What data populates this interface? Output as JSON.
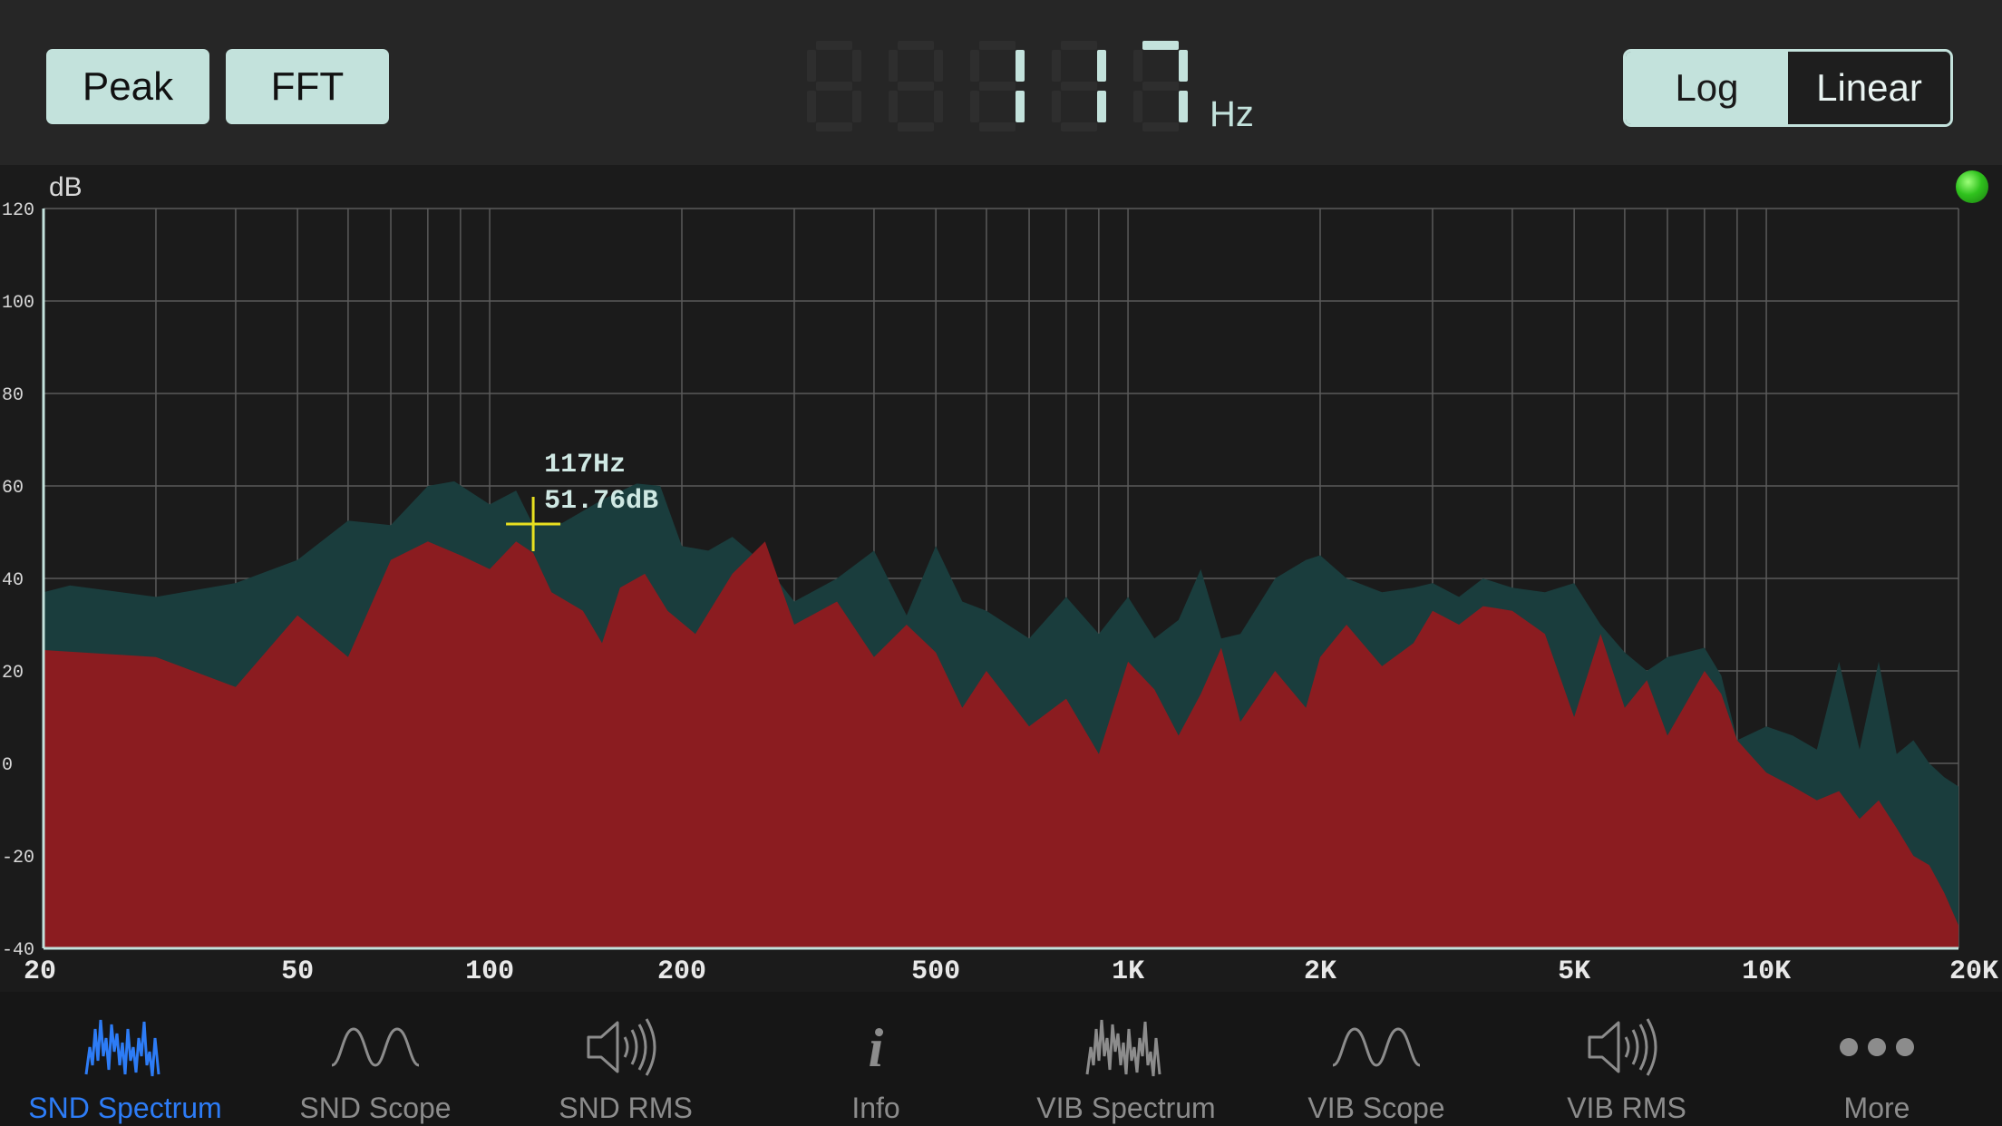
{
  "header": {
    "peak_label": "Peak",
    "fft_label": "FFT",
    "frequency_readout": "117",
    "frequency_unit": "Hz",
    "scale_log_label": "Log",
    "scale_linear_label": "Linear",
    "selected_scale": "Log"
  },
  "chart": {
    "y_unit_label": "dB",
    "cursor_freq_label": "117Hz",
    "cursor_level_label": "51.76dB",
    "status_led_color": "#2fc21d"
  },
  "chart_data": {
    "type": "area",
    "xscale": "log",
    "xlim": [
      20,
      20000
    ],
    "ylim": [
      -40,
      120
    ],
    "grid": true,
    "x_tick_labels": [
      "20",
      "50",
      "100",
      "200",
      "500",
      "1K",
      "2K",
      "5K",
      "10K",
      "20K"
    ],
    "x_tick_values": [
      20,
      50,
      100,
      200,
      500,
      1000,
      2000,
      5000,
      10000,
      20000
    ],
    "y_tick_labels": [
      "120",
      "100",
      "80",
      "60",
      "40",
      "20",
      "0",
      "-20",
      "-40"
    ],
    "y_tick_values": [
      120,
      100,
      80,
      60,
      40,
      20,
      0,
      -20,
      -40
    ],
    "ylabel": "dB",
    "cursor": {
      "freq_hz": 117,
      "level_db": 51.76
    },
    "series": [
      {
        "color": "#1a3d3d",
        "points": [
          [
            20,
            37
          ],
          [
            22,
            38.5
          ],
          [
            30,
            36
          ],
          [
            40,
            39
          ],
          [
            50,
            44
          ],
          [
            60,
            52.5
          ],
          [
            70,
            51.5
          ],
          [
            80,
            60
          ],
          [
            88,
            61
          ],
          [
            100,
            56
          ],
          [
            110,
            59
          ],
          [
            117,
            51.5
          ],
          [
            130,
            52
          ],
          [
            150,
            57
          ],
          [
            170,
            60.5
          ],
          [
            185,
            60
          ],
          [
            200,
            47
          ],
          [
            220,
            46
          ],
          [
            240,
            49
          ],
          [
            270,
            43
          ],
          [
            300,
            35
          ],
          [
            350,
            40
          ],
          [
            400,
            46
          ],
          [
            450,
            32
          ],
          [
            500,
            47
          ],
          [
            550,
            35
          ],
          [
            600,
            33
          ],
          [
            700,
            27
          ],
          [
            800,
            36
          ],
          [
            900,
            28
          ],
          [
            1000,
            36
          ],
          [
            1100,
            27
          ],
          [
            1200,
            31
          ],
          [
            1300,
            42
          ],
          [
            1400,
            27
          ],
          [
            1500,
            28
          ],
          [
            1700,
            40
          ],
          [
            1900,
            44
          ],
          [
            2000,
            45
          ],
          [
            2200,
            40
          ],
          [
            2500,
            37
          ],
          [
            2800,
            38
          ],
          [
            3000,
            39
          ],
          [
            3300,
            36
          ],
          [
            3600,
            40
          ],
          [
            4000,
            38
          ],
          [
            4500,
            37
          ],
          [
            5000,
            39
          ],
          [
            5500,
            30
          ],
          [
            6000,
            24
          ],
          [
            6500,
            20
          ],
          [
            7000,
            23
          ],
          [
            8000,
            25
          ],
          [
            8500,
            19
          ],
          [
            9000,
            5
          ],
          [
            10000,
            8
          ],
          [
            11000,
            6
          ],
          [
            12000,
            3
          ],
          [
            13000,
            22
          ],
          [
            14000,
            3
          ],
          [
            15000,
            22
          ],
          [
            16000,
            2
          ],
          [
            17000,
            5
          ],
          [
            18000,
            0
          ],
          [
            19000,
            -3
          ],
          [
            20000,
            -5
          ]
        ]
      },
      {
        "color": "#8b1c20",
        "points": [
          [
            20,
            24.5
          ],
          [
            30,
            23
          ],
          [
            40,
            16.5
          ],
          [
            50,
            32
          ],
          [
            60,
            23
          ],
          [
            70,
            44
          ],
          [
            80,
            48
          ],
          [
            90,
            45
          ],
          [
            100,
            42
          ],
          [
            110,
            48
          ],
          [
            117,
            45.5
          ],
          [
            125,
            37
          ],
          [
            140,
            33
          ],
          [
            150,
            26
          ],
          [
            160,
            38
          ],
          [
            175,
            41
          ],
          [
            190,
            33
          ],
          [
            210,
            28
          ],
          [
            240,
            41
          ],
          [
            270,
            48
          ],
          [
            300,
            30
          ],
          [
            350,
            35
          ],
          [
            400,
            23
          ],
          [
            450,
            30
          ],
          [
            500,
            24
          ],
          [
            550,
            12
          ],
          [
            600,
            20
          ],
          [
            700,
            8
          ],
          [
            800,
            14
          ],
          [
            900,
            2
          ],
          [
            1000,
            22
          ],
          [
            1100,
            16
          ],
          [
            1200,
            6
          ],
          [
            1300,
            15
          ],
          [
            1400,
            25
          ],
          [
            1500,
            9
          ],
          [
            1700,
            20
          ],
          [
            1900,
            12
          ],
          [
            2000,
            23
          ],
          [
            2200,
            30
          ],
          [
            2500,
            21
          ],
          [
            2800,
            26
          ],
          [
            3000,
            33
          ],
          [
            3300,
            30
          ],
          [
            3600,
            34
          ],
          [
            4000,
            33
          ],
          [
            4500,
            28
          ],
          [
            5000,
            10
          ],
          [
            5500,
            28
          ],
          [
            6000,
            12
          ],
          [
            6500,
            18
          ],
          [
            7000,
            6
          ],
          [
            8000,
            20
          ],
          [
            8500,
            15
          ],
          [
            9000,
            5
          ],
          [
            10000,
            -2
          ],
          [
            11000,
            -5
          ],
          [
            12000,
            -8
          ],
          [
            13000,
            -6
          ],
          [
            14000,
            -12
          ],
          [
            15000,
            -8
          ],
          [
            16000,
            -14
          ],
          [
            17000,
            -20
          ],
          [
            18000,
            -22
          ],
          [
            19000,
            -28
          ],
          [
            20000,
            -35
          ]
        ]
      }
    ]
  },
  "tabs": [
    {
      "label": "SND Spectrum",
      "icon": "spectrum-icon",
      "active": true
    },
    {
      "label": "SND Scope",
      "icon": "scope-wave-icon",
      "active": false
    },
    {
      "label": "SND RMS",
      "icon": "speaker-icon",
      "active": false
    },
    {
      "label": "Info",
      "icon": "info-icon",
      "active": false
    },
    {
      "label": "VIB Spectrum",
      "icon": "spectrum-icon",
      "active": false
    },
    {
      "label": "VIB Scope",
      "icon": "scope-wave-icon",
      "active": false
    },
    {
      "label": "VIB RMS",
      "icon": "speaker-icon",
      "active": false
    },
    {
      "label": "More",
      "icon": "more-dots-icon",
      "active": false
    }
  ],
  "colors": {
    "accent_active": "#2d7cf6",
    "button_fill": "#c3e2dc",
    "cursor": "#e8e020",
    "peak_fill": "#1a3d3d",
    "fft_fill": "#8b1c20"
  }
}
